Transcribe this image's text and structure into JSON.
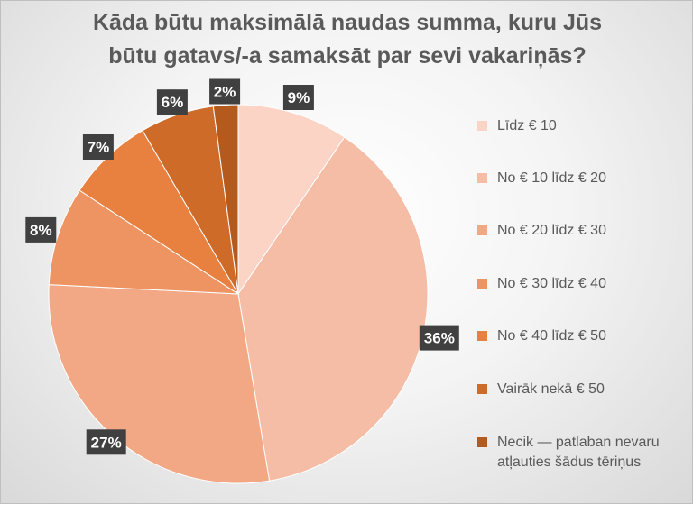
{
  "chart_data": {
    "type": "pie",
    "title": "Kāda būtu maksimālā naudas summa, kuru Jūs būtu gatavs/-a samaksāt par sevi vakariņās?",
    "title_lines": [
      "Kāda būtu maksimālā naudas summa, kuru Jūs",
      "būtu gatavs/-a samaksāt par sevi vakariņās?"
    ],
    "legend_position": "right",
    "slices": [
      {
        "label": "Līdz € 10",
        "value": 9,
        "display": "9%",
        "color": "#fbd4c6"
      },
      {
        "label": "No € 10 līdz € 20",
        "value": 36,
        "display": "36%",
        "color": "#f5bda5"
      },
      {
        "label": "No € 20 līdz € 30",
        "value": 27,
        "display": "27%",
        "color": "#f2a785"
      },
      {
        "label": "No € 30 līdz € 40",
        "value": 8,
        "display": "8%",
        "color": "#ed9462"
      },
      {
        "label": "No € 40 līdz € 50",
        "value": 7,
        "display": "7%",
        "color": "#e8803f"
      },
      {
        "label": "Vairāk nekā € 50",
        "value": 6,
        "display": "6%",
        "color": "#cf6b29"
      },
      {
        "label": "Necik — patlaban nevaru atļauties šādus tēriņus",
        "value": 2,
        "display": "2%",
        "color": "#b45a1c"
      }
    ]
  }
}
